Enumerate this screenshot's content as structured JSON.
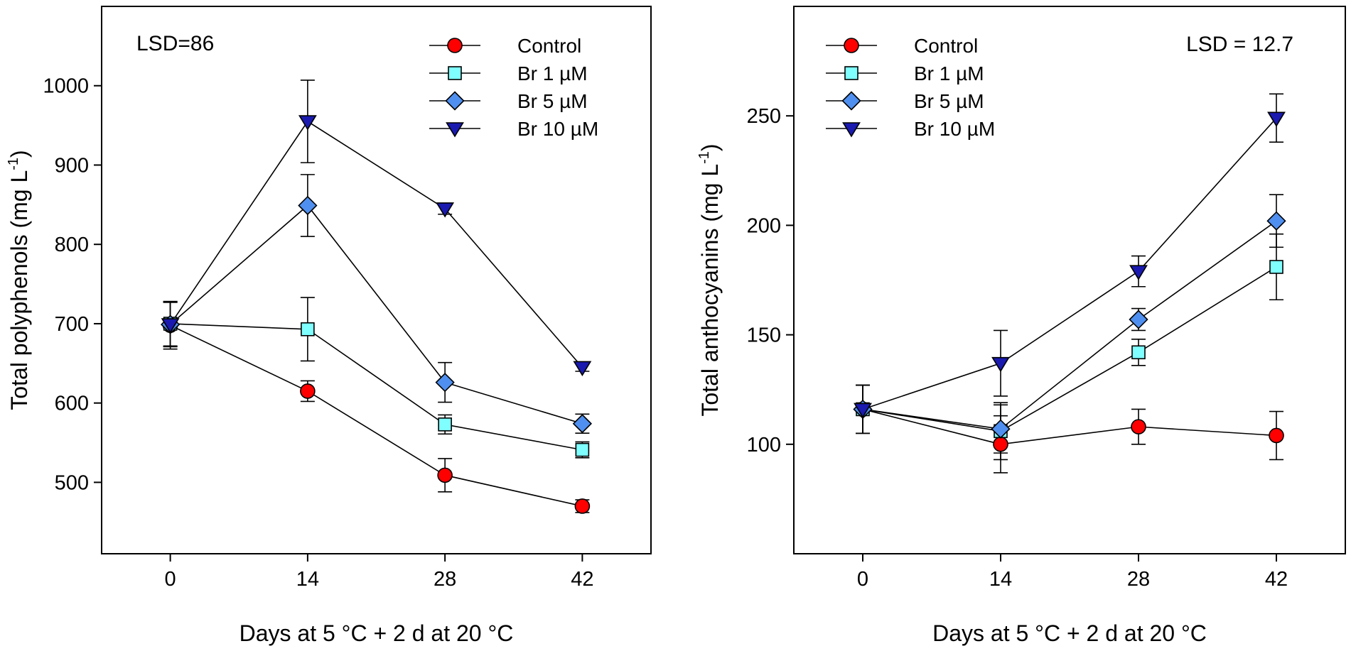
{
  "chart_data": [
    {
      "type": "line",
      "x": [
        0,
        14,
        28,
        42
      ],
      "xlabel": "Days at 5 °C + 2 d at 20 °C",
      "ylabel": "Total polyphenols (mg L",
      "ylabel_sup": "-1",
      "ylabel_close": ")",
      "xlim": [
        -7,
        49
      ],
      "ylim": [
        410,
        1100
      ],
      "xticks": [
        0,
        14,
        28,
        42
      ],
      "xtick_labels": [
        "0",
        "14",
        "28",
        "42"
      ],
      "yticks": [
        500,
        600,
        700,
        800,
        900,
        1000
      ],
      "ytick_labels": [
        "500",
        "600",
        "700",
        "800",
        "900",
        "1000"
      ],
      "annotation": "LSD=86",
      "annotation_pos": "top-left",
      "legend_pos": "top-right",
      "series": [
        {
          "name": "Control",
          "marker": "circle",
          "color": "#ff0000",
          "values": [
            698,
            615,
            509,
            470
          ],
          "errors": [
            30,
            13,
            21,
            8
          ]
        },
        {
          "name": "Br 1 µM",
          "marker": "square",
          "color": "#7fffff",
          "values": [
            700,
            693,
            573,
            541
          ],
          "errors": [
            28,
            40,
            12,
            10
          ]
        },
        {
          "name": "Br 5 µM",
          "marker": "diamond",
          "color": "#4f8fef",
          "values": [
            699,
            849,
            626,
            574
          ],
          "errors": [
            28,
            39,
            25,
            12
          ]
        },
        {
          "name": "Br 10 µM",
          "marker": "triangle-down",
          "color": "#1a1ab0",
          "values": [
            699,
            955,
            845,
            645
          ],
          "errors": [
            28,
            52,
            7,
            5
          ]
        }
      ]
    },
    {
      "type": "line",
      "x": [
        0,
        14,
        28,
        42
      ],
      "xlabel": "Days at 5 °C + 2 d at 20 °C",
      "ylabel": "Total anthocyanins (mg L",
      "ylabel_sup": "-1",
      "ylabel_close": ")",
      "xlim": [
        -7,
        49
      ],
      "ylim": [
        50,
        300
      ],
      "xticks": [
        0,
        14,
        28,
        42
      ],
      "xtick_labels": [
        "0",
        "14",
        "28",
        "42"
      ],
      "yticks": [
        100,
        150,
        200,
        250
      ],
      "ytick_labels": [
        "100",
        "150",
        "200",
        "250"
      ],
      "annotation": "LSD = 12.7",
      "annotation_pos": "top-right",
      "legend_pos": "top-left",
      "series": [
        {
          "name": "Control",
          "marker": "circle",
          "color": "#ff0000",
          "values": [
            116,
            100,
            108,
            104
          ],
          "errors": [
            11,
            13,
            8,
            11
          ]
        },
        {
          "name": "Br 1 µM",
          "marker": "square",
          "color": "#7fffff",
          "values": [
            116,
            106,
            142,
            181
          ],
          "errors": [
            11,
            13,
            6,
            15
          ]
        },
        {
          "name": "Br 5 µM",
          "marker": "diamond",
          "color": "#4f8fef",
          "values": [
            116,
            107,
            157,
            202
          ],
          "errors": [
            11,
            11,
            5,
            12
          ]
        },
        {
          "name": "Br 10 µM",
          "marker": "triangle-down",
          "color": "#1a1ab0",
          "values": [
            116,
            137,
            179,
            249
          ],
          "errors": [
            11,
            15,
            7,
            11
          ]
        }
      ]
    }
  ]
}
